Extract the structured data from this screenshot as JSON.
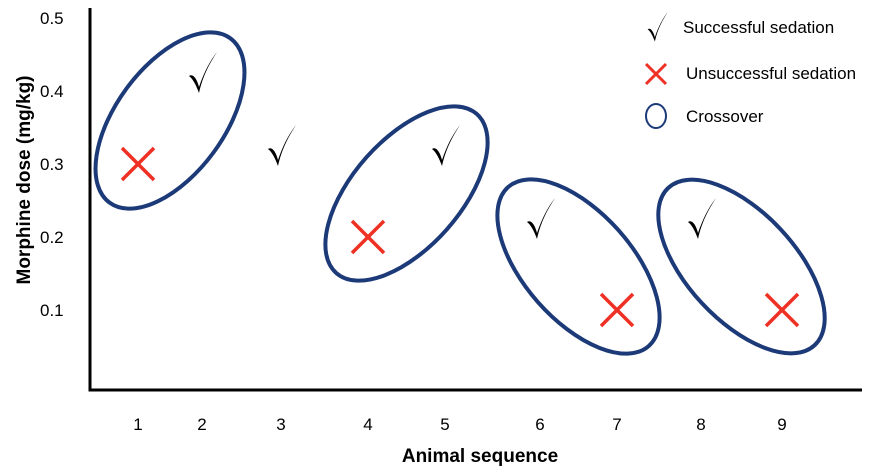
{
  "chart_data": {
    "type": "scatter",
    "xlabel": "Animal sequence",
    "ylabel": "Morphine dose (mg/kg)",
    "x_ticks": [
      "1",
      "2",
      "3",
      "4",
      "5",
      "6",
      "7",
      "8",
      "9"
    ],
    "y_ticks": [
      "0.1",
      "0.2",
      "0.3",
      "0.4",
      "0.5"
    ],
    "ylim": [
      0,
      0.5
    ],
    "grid": false,
    "legend_position": "top-right",
    "legend": [
      {
        "key": "success",
        "label": "Successful sedation"
      },
      {
        "key": "fail",
        "label": "Unsuccessful sedation"
      },
      {
        "key": "crossover",
        "label": "Crossover"
      }
    ],
    "points": [
      {
        "x": 1,
        "y": 0.3,
        "outcome": "fail"
      },
      {
        "x": 2,
        "y": 0.4,
        "outcome": "success"
      },
      {
        "x": 3,
        "y": 0.3,
        "outcome": "success"
      },
      {
        "x": 4,
        "y": 0.2,
        "outcome": "fail"
      },
      {
        "x": 5,
        "y": 0.3,
        "outcome": "success"
      },
      {
        "x": 6,
        "y": 0.2,
        "outcome": "success"
      },
      {
        "x": 7,
        "y": 0.1,
        "outcome": "fail"
      },
      {
        "x": 8,
        "y": 0.2,
        "outcome": "success"
      },
      {
        "x": 9,
        "y": 0.1,
        "outcome": "fail"
      }
    ],
    "crossover_groups": [
      [
        1,
        2
      ],
      [
        4,
        5
      ],
      [
        6,
        7
      ],
      [
        8,
        9
      ]
    ],
    "colors": {
      "success": "#000000",
      "fail": "#ee3124",
      "crossover": "#1d3a78",
      "axis": "#000000"
    }
  }
}
